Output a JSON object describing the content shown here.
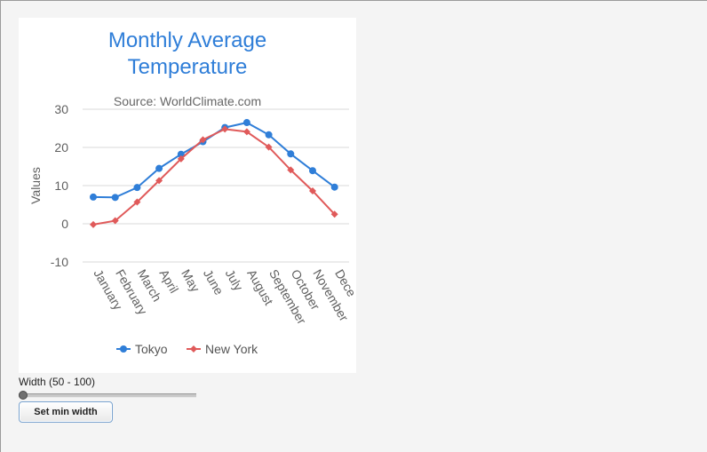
{
  "chart_data": {
    "type": "line",
    "title_lines": [
      "Monthly Average",
      "Temperature"
    ],
    "subtitle": "Source: WorldClimate.com",
    "ylabel": "Values",
    "xlabel": "",
    "ylim": [
      -10,
      30
    ],
    "yticks": [
      30,
      20,
      10,
      0,
      -10
    ],
    "grid": true,
    "legend_position": "bottom",
    "categories": [
      "January",
      "February",
      "March",
      "April",
      "May",
      "June",
      "July",
      "August",
      "September",
      "October",
      "November",
      "December"
    ],
    "category_labels": [
      "January",
      "February",
      "March",
      "April",
      "May",
      "June",
      "July",
      "August",
      "September",
      "October",
      "November",
      "Dece"
    ],
    "series": [
      {
        "name": "Tokyo",
        "color": "#2f7ed8",
        "marker": "circle",
        "values": [
          7.0,
          6.9,
          9.5,
          14.5,
          18.2,
          21.5,
          25.2,
          26.5,
          23.3,
          18.3,
          13.9,
          9.6
        ]
      },
      {
        "name": "New York",
        "color": "#e05a5a",
        "marker": "diamond",
        "values": [
          -0.2,
          0.8,
          5.7,
          11.3,
          17.0,
          22.0,
          24.8,
          24.1,
          20.1,
          14.1,
          8.6,
          2.5
        ]
      }
    ]
  },
  "controls": {
    "slider_label": "Width (50 - 100)",
    "slider_range": [
      50,
      100
    ],
    "slider_value": 50,
    "button_label": "Set min width"
  }
}
